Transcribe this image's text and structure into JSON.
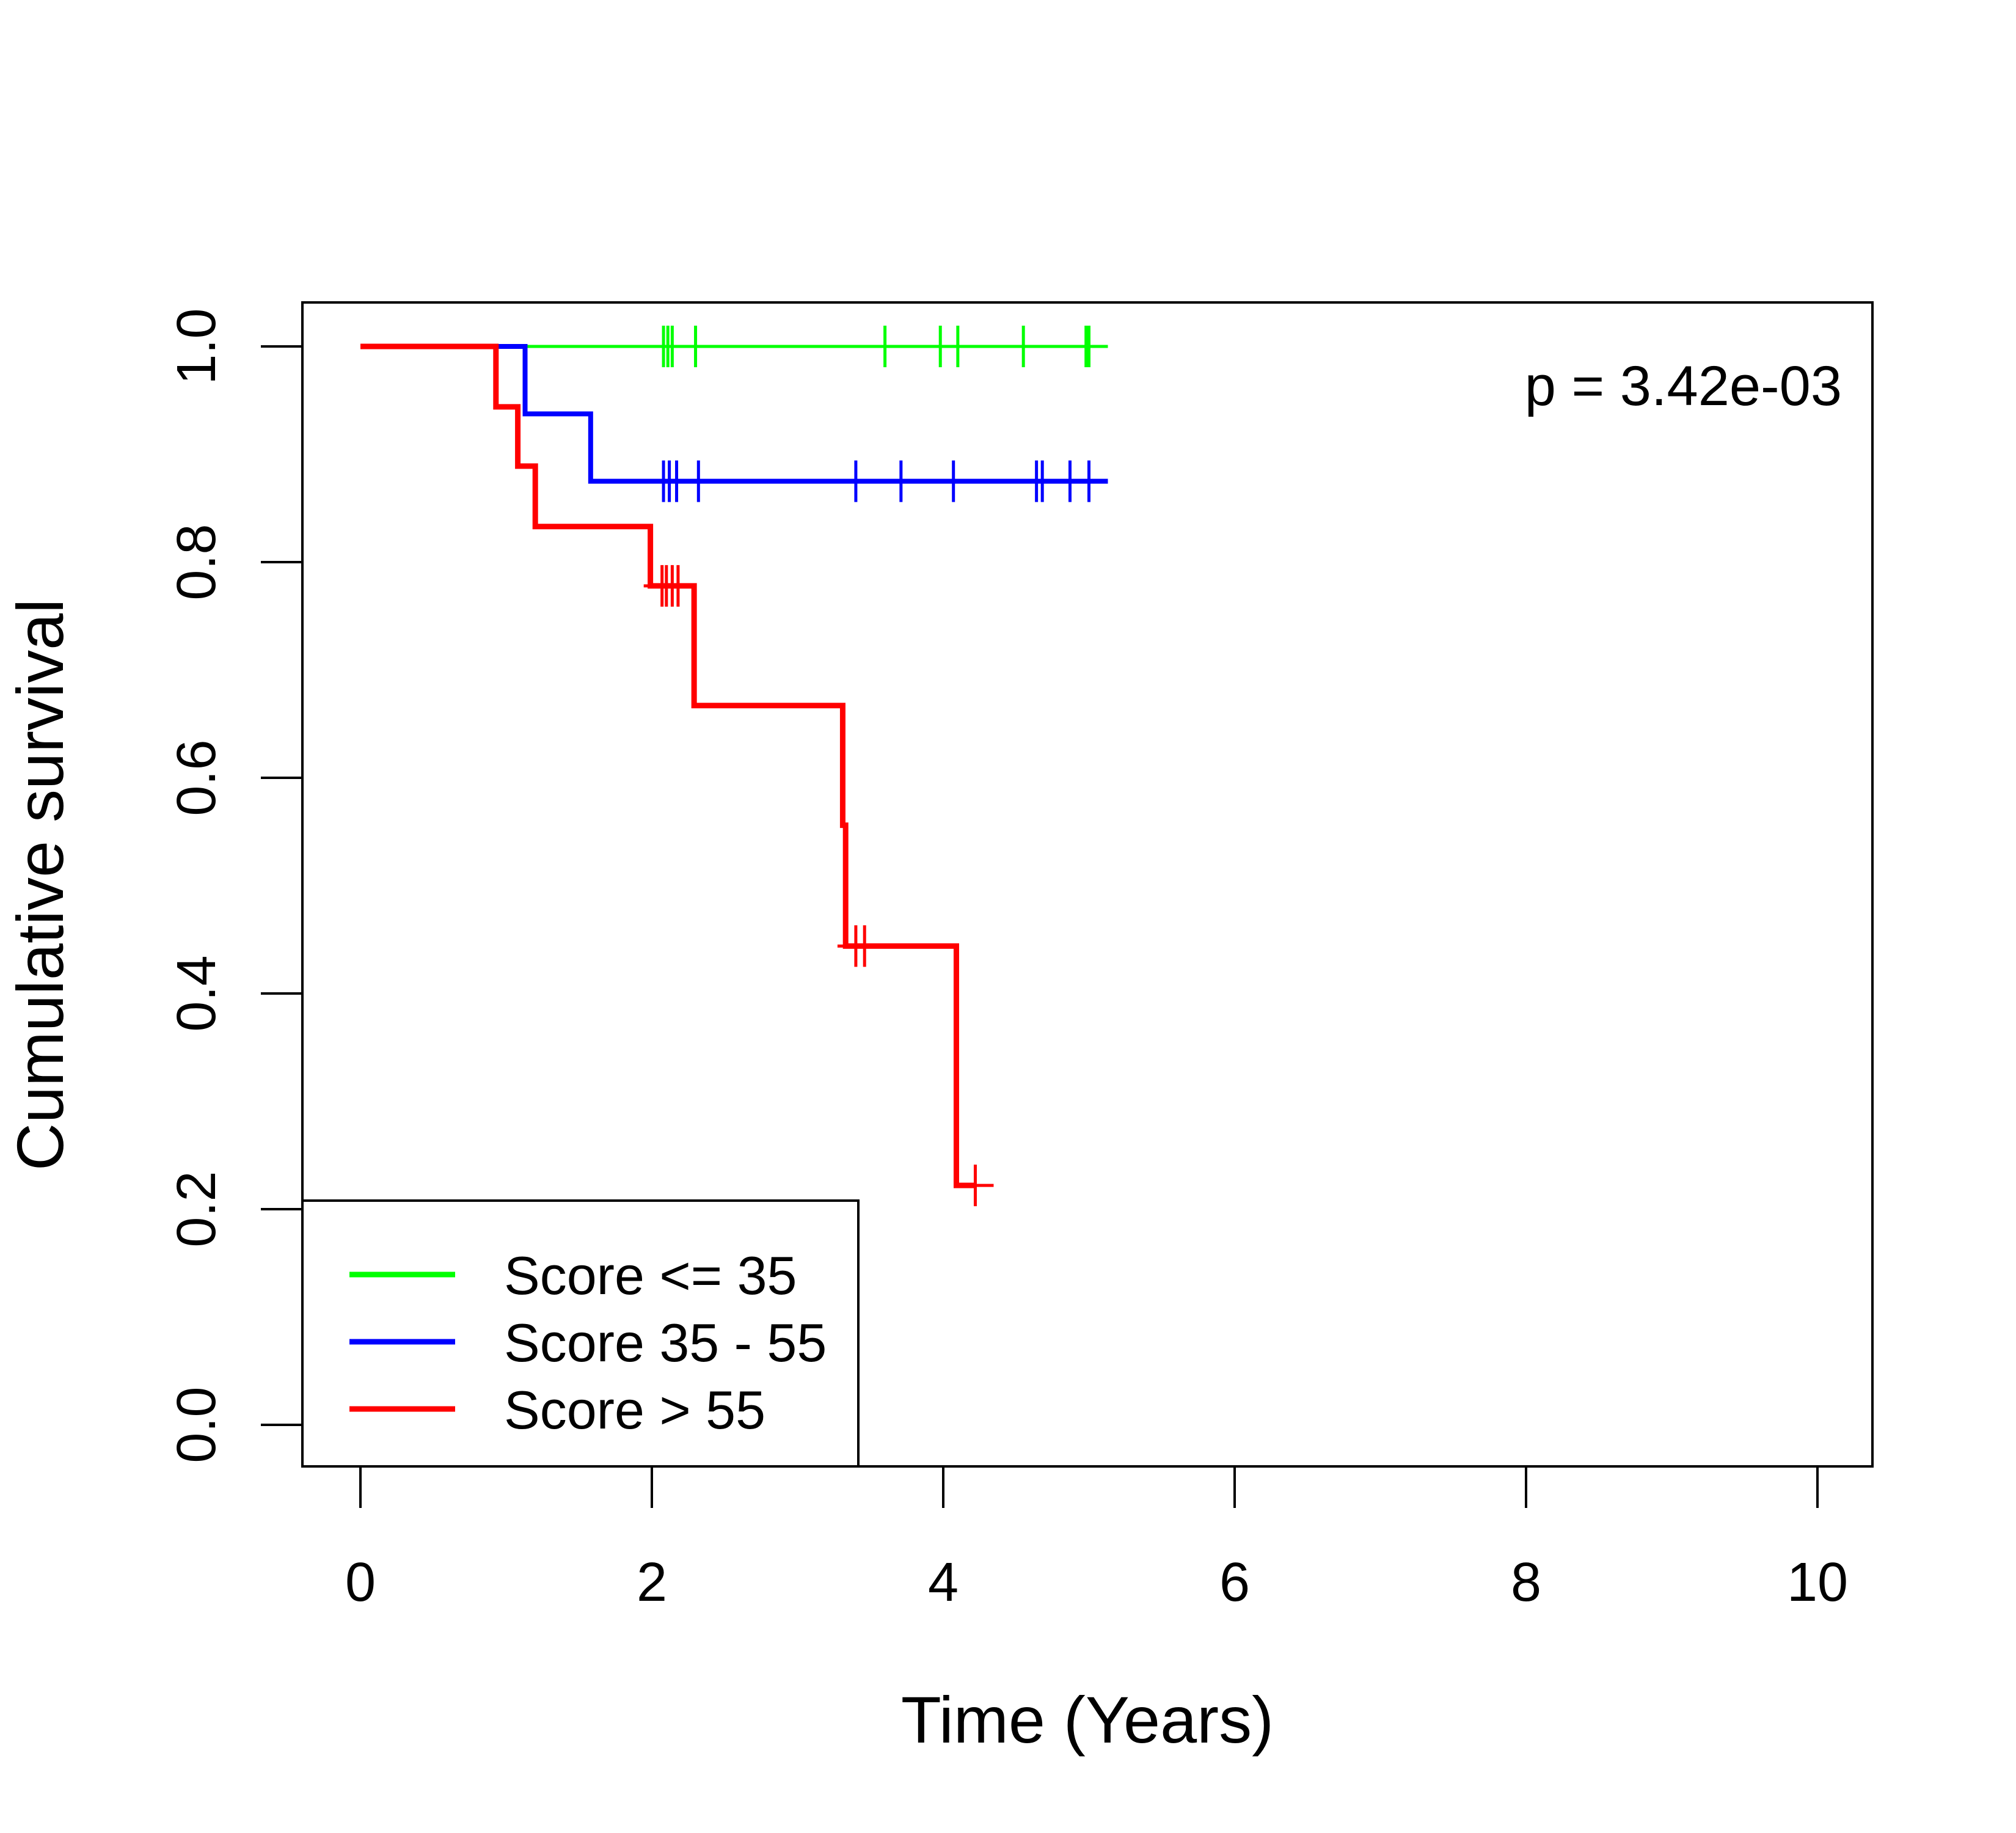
{
  "chart_data": {
    "type": "line",
    "subtype": "kaplan-meier step",
    "xlabel": "Time (Years)",
    "ylabel": "Cumulative survival",
    "xlim": [
      0,
      10
    ],
    "ylim": [
      0,
      1
    ],
    "xticks": [
      "0",
      "2",
      "4",
      "6",
      "8",
      "10"
    ],
    "yticks": [
      "0.0",
      "0.2",
      "0.4",
      "0.6",
      "0.8",
      "1.0"
    ],
    "grid": false,
    "annotation": "p = 3.42e-03",
    "legend_position": "bottom-left",
    "series": [
      {
        "name": "Score <= 35",
        "color": "#00ff00",
        "steps": [
          [
            0,
            1.0
          ],
          [
            5.13,
            1.0
          ]
        ],
        "censored": [
          [
            2.08,
            1.0
          ],
          [
            2.11,
            1.0
          ],
          [
            2.14,
            1.0
          ],
          [
            2.3,
            1.0
          ],
          [
            3.6,
            1.0
          ],
          [
            3.98,
            1.0
          ],
          [
            4.1,
            1.0
          ],
          [
            4.55,
            1.0
          ],
          [
            4.98,
            1.0
          ],
          [
            5.0,
            1.0
          ]
        ]
      },
      {
        "name": "Score 35 - 55",
        "color": "#0000ff",
        "steps": [
          [
            0,
            1.0
          ],
          [
            1.13,
            0.9375
          ],
          [
            1.58,
            0.875
          ],
          [
            5.13,
            0.875
          ]
        ],
        "censored": [
          [
            2.08,
            0.875
          ],
          [
            2.12,
            0.875
          ],
          [
            2.17,
            0.875
          ],
          [
            2.32,
            0.875
          ],
          [
            3.4,
            0.875
          ],
          [
            3.71,
            0.875
          ],
          [
            4.07,
            0.875
          ],
          [
            4.64,
            0.875
          ],
          [
            4.68,
            0.875
          ],
          [
            4.87,
            0.875
          ],
          [
            5.0,
            0.875
          ]
        ]
      },
      {
        "name": "Score > 55",
        "color": "#ff0000",
        "steps": [
          [
            0,
            1.0
          ],
          [
            0.93,
            0.944
          ],
          [
            1.08,
            0.889
          ],
          [
            1.2,
            0.833
          ],
          [
            1.99,
            0.778
          ],
          [
            2.29,
            0.667
          ],
          [
            3.31,
            0.556
          ],
          [
            3.33,
            0.444
          ],
          [
            4.09,
            0.222
          ],
          [
            4.22,
            0.222
          ]
        ],
        "censored": [
          [
            2.07,
            0.778
          ],
          [
            2.1,
            0.778
          ],
          [
            2.14,
            0.778
          ],
          [
            2.18,
            0.778
          ],
          [
            3.4,
            0.444
          ],
          [
            3.46,
            0.444
          ],
          [
            4.22,
            0.222
          ]
        ]
      }
    ]
  }
}
